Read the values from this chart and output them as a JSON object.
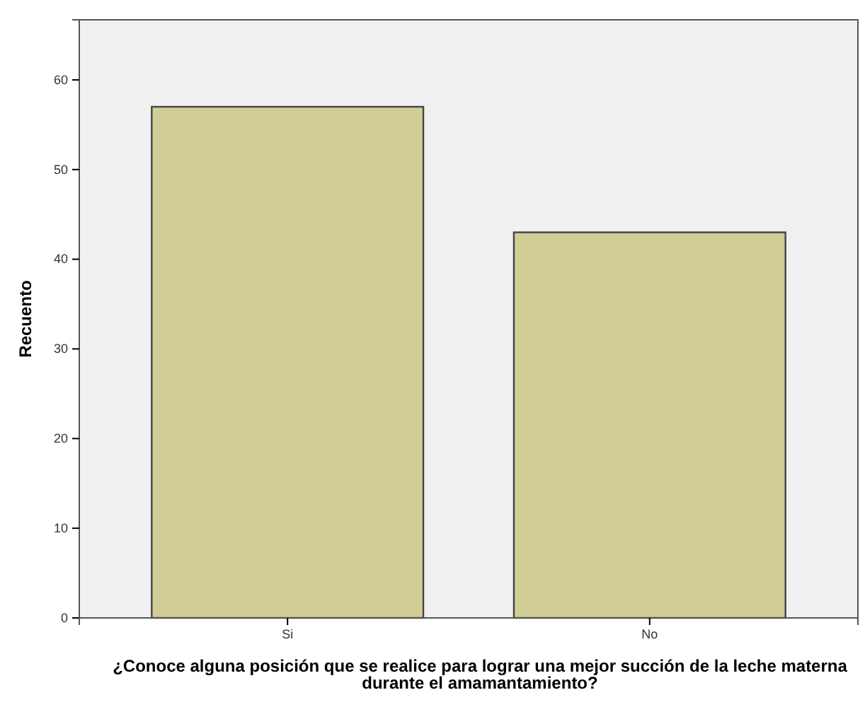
{
  "chart_data": {
    "type": "bar",
    "categories": [
      "Si",
      "No"
    ],
    "values": [
      57,
      43
    ],
    "color": "#d2cc96",
    "ylim": [
      0,
      66.7
    ],
    "yticks": [
      0,
      10,
      20,
      30,
      40,
      50,
      60
    ],
    "xlabel": "¿Conoce alguna posición que se realice para lograr una mejor succión de la leche materna durante el amamantamiento?",
    "ylabel": "Recuento",
    "grid": false
  }
}
